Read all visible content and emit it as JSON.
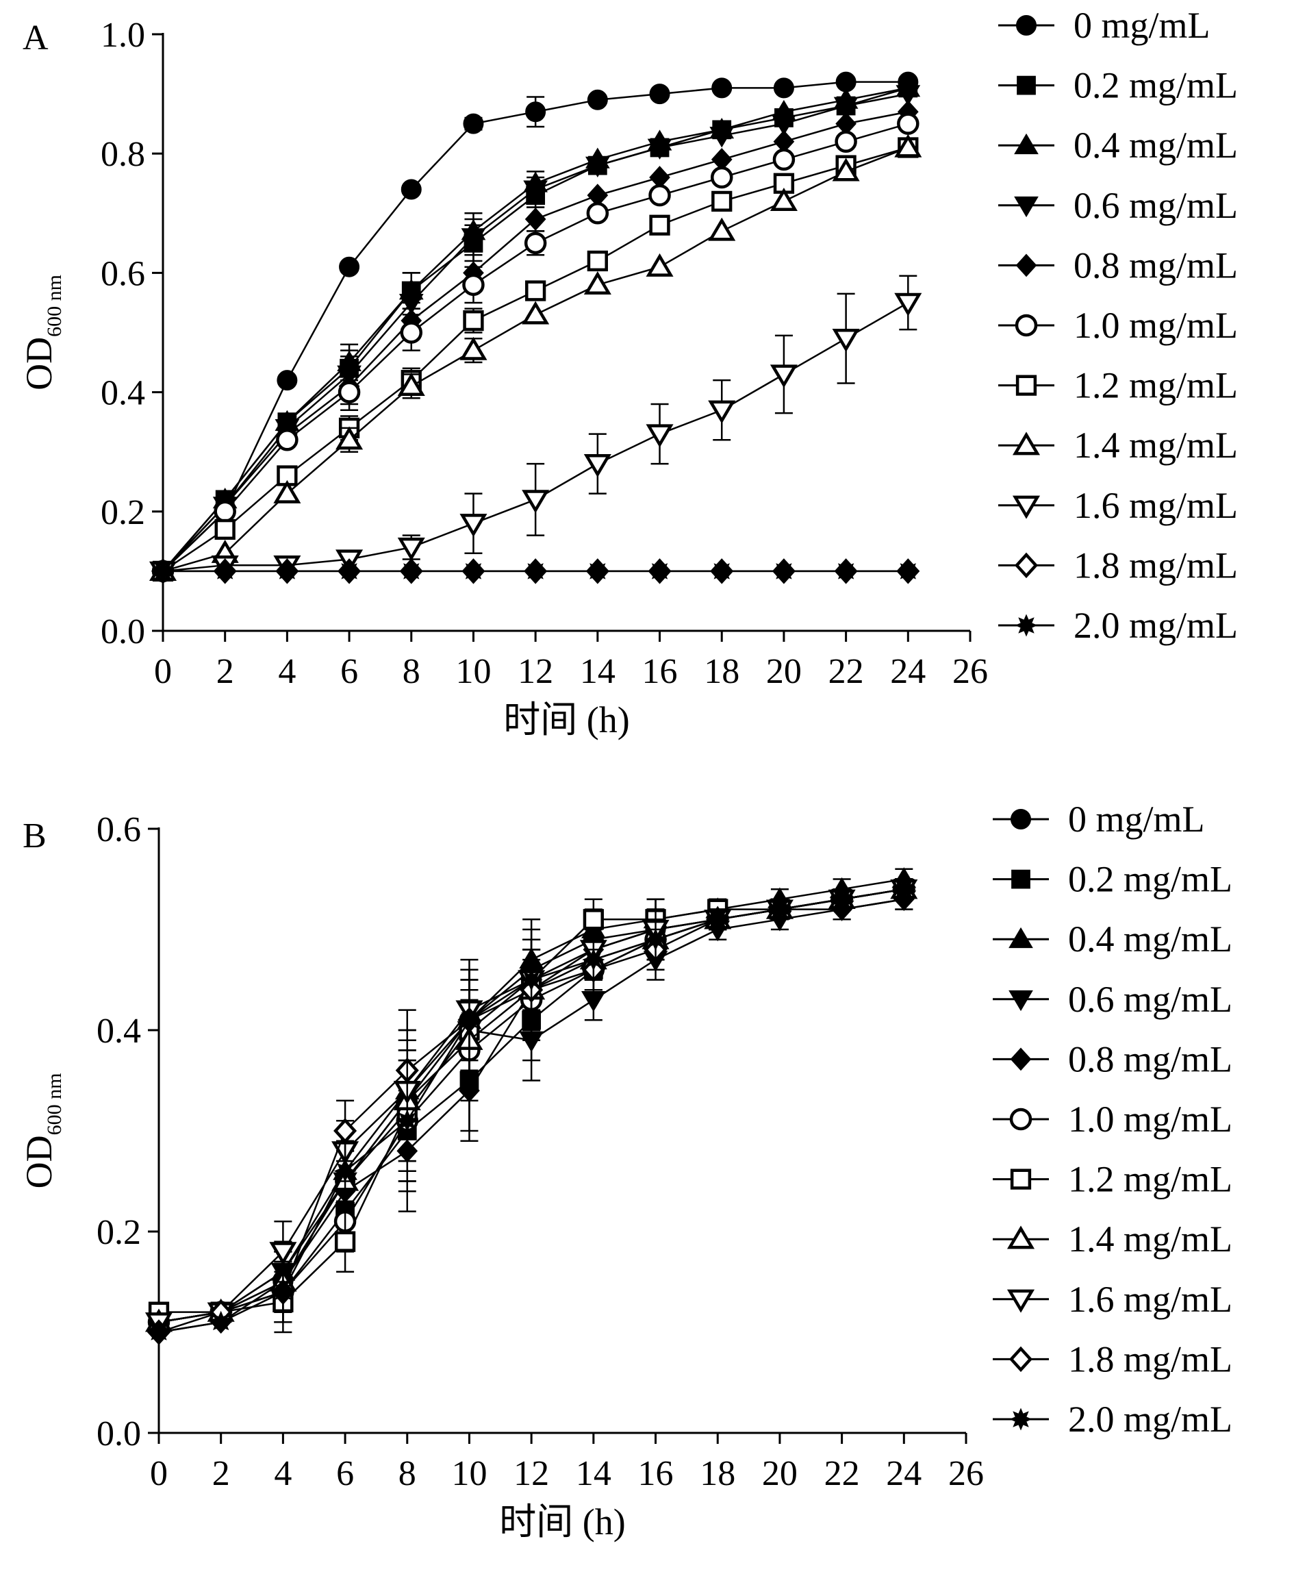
{
  "chart_data": [
    {
      "type": "line",
      "panel_label": "A",
      "xlabel": "时间 (h)",
      "ylabel_main": "OD",
      "ylabel_sub": "600 nm",
      "xlim": [
        0,
        26
      ],
      "ylim": [
        0,
        1.0
      ],
      "xticks": [
        0,
        2,
        4,
        6,
        8,
        10,
        12,
        14,
        16,
        18,
        20,
        22,
        24,
        26
      ],
      "yticks": [
        0.0,
        0.2,
        0.4,
        0.6,
        0.8,
        1.0
      ],
      "ytick_labels": [
        "0.0",
        "0.2",
        "0.4",
        "0.6",
        "0.8",
        "1.0"
      ],
      "grid": false,
      "legend": "right",
      "x": [
        0,
        2,
        4,
        6,
        8,
        10,
        12,
        14,
        16,
        18,
        20,
        22,
        24
      ],
      "series": [
        {
          "name": "0 mg/mL",
          "marker": "circle",
          "filled": true,
          "values": [
            0.1,
            0.2,
            0.42,
            0.61,
            0.74,
            0.85,
            0.87,
            0.89,
            0.9,
            0.91,
            0.91,
            0.92,
            0.92
          ],
          "err": [
            0,
            0,
            0,
            0,
            0,
            0.01,
            0.025,
            0,
            0,
            0,
            0,
            0,
            0
          ]
        },
        {
          "name": "0.2 mg/mL",
          "marker": "square",
          "filled": true,
          "values": [
            0.1,
            0.22,
            0.35,
            0.44,
            0.57,
            0.65,
            0.73,
            0.78,
            0.81,
            0.84,
            0.86,
            0.88,
            0.91
          ],
          "err": [
            0,
            0,
            0,
            0.03,
            0.03,
            0.03,
            0.02,
            0,
            0,
            0,
            0,
            0,
            0
          ]
        },
        {
          "name": "0.4 mg/mL",
          "marker": "triangle-up",
          "filled": true,
          "values": [
            0.1,
            0.22,
            0.35,
            0.45,
            0.57,
            0.67,
            0.75,
            0.79,
            0.82,
            0.84,
            0.87,
            0.89,
            0.91
          ],
          "err": [
            0,
            0,
            0,
            0.03,
            0.03,
            0.03,
            0.02,
            0,
            0,
            0,
            0,
            0,
            0
          ]
        },
        {
          "name": "0.6 mg/mL",
          "marker": "triangle-down",
          "filled": true,
          "values": [
            0.1,
            0.21,
            0.34,
            0.43,
            0.55,
            0.66,
            0.74,
            0.78,
            0.81,
            0.83,
            0.85,
            0.88,
            0.9
          ],
          "err": [
            0,
            0,
            0,
            0.03,
            0.03,
            0.03,
            0.02,
            0,
            0,
            0,
            0,
            0,
            0
          ]
        },
        {
          "name": "0.8 mg/mL",
          "marker": "diamond",
          "filled": true,
          "values": [
            0.1,
            0.21,
            0.33,
            0.41,
            0.52,
            0.6,
            0.69,
            0.73,
            0.76,
            0.79,
            0.82,
            0.85,
            0.87
          ],
          "err": [
            0,
            0,
            0,
            0.03,
            0.03,
            0.03,
            0.02,
            0,
            0,
            0,
            0,
            0,
            0
          ]
        },
        {
          "name": "1.0 mg/mL",
          "marker": "circle",
          "filled": false,
          "values": [
            0.1,
            0.2,
            0.32,
            0.4,
            0.5,
            0.58,
            0.65,
            0.7,
            0.73,
            0.76,
            0.79,
            0.82,
            0.85
          ],
          "err": [
            0,
            0,
            0,
            0.03,
            0.03,
            0.03,
            0.02,
            0,
            0,
            0,
            0,
            0,
            0
          ]
        },
        {
          "name": "1.2 mg/mL",
          "marker": "square",
          "filled": false,
          "values": [
            0.1,
            0.17,
            0.26,
            0.34,
            0.42,
            0.52,
            0.57,
            0.62,
            0.68,
            0.72,
            0.75,
            0.78,
            0.81
          ],
          "err": [
            0,
            0,
            0,
            0.02,
            0.02,
            0.02,
            0,
            0,
            0,
            0,
            0,
            0,
            0
          ]
        },
        {
          "name": "1.4 mg/mL",
          "marker": "triangle-up",
          "filled": false,
          "values": [
            0.1,
            0.13,
            0.23,
            0.32,
            0.41,
            0.47,
            0.53,
            0.58,
            0.61,
            0.67,
            0.72,
            0.77,
            0.81
          ],
          "err": [
            0,
            0,
            0,
            0.02,
            0.02,
            0.02,
            0,
            0,
            0,
            0,
            0,
            0,
            0
          ]
        },
        {
          "name": "1.6 mg/mL",
          "marker": "triangle-down",
          "filled": false,
          "values": [
            0.1,
            0.11,
            0.11,
            0.12,
            0.14,
            0.18,
            0.22,
            0.28,
            0.33,
            0.37,
            0.43,
            0.49,
            0.55
          ],
          "err": [
            0,
            0,
            0,
            0,
            0.02,
            0.05,
            0.06,
            0.05,
            0.05,
            0.05,
            0.065,
            0.075,
            0.045
          ]
        },
        {
          "name": "1.8 mg/mL",
          "marker": "diamond",
          "filled": false,
          "values": [
            0.1,
            0.1,
            0.1,
            0.1,
            0.1,
            0.1,
            0.1,
            0.1,
            0.1,
            0.1,
            0.1,
            0.1,
            0.1
          ],
          "err": [
            0,
            0,
            0,
            0,
            0,
            0,
            0,
            0,
            0,
            0,
            0,
            0,
            0
          ]
        },
        {
          "name": "2.0 mg/mL",
          "marker": "star",
          "filled": true,
          "values": [
            0.1,
            0.1,
            0.1,
            0.1,
            0.1,
            0.1,
            0.1,
            0.1,
            0.1,
            0.1,
            0.1,
            0.1,
            0.1
          ],
          "err": [
            0,
            0,
            0,
            0,
            0,
            0,
            0,
            0,
            0,
            0,
            0,
            0,
            0
          ]
        }
      ]
    },
    {
      "type": "line",
      "panel_label": "B",
      "xlabel": "时间 (h)",
      "ylabel_main": "OD",
      "ylabel_sub": "600 nm",
      "xlim": [
        0,
        26
      ],
      "ylim": [
        0,
        0.6
      ],
      "xticks": [
        0,
        2,
        4,
        6,
        8,
        10,
        12,
        14,
        16,
        18,
        20,
        22,
        24,
        26
      ],
      "yticks": [
        0.0,
        0.2,
        0.4,
        0.6
      ],
      "ytick_labels": [
        "0.0",
        "0.2",
        "0.4",
        "0.6"
      ],
      "grid": false,
      "legend": "right",
      "x": [
        0,
        2,
        4,
        6,
        8,
        10,
        12,
        14,
        16,
        18,
        20,
        22,
        24
      ],
      "series": [
        {
          "name": "0 mg/mL",
          "marker": "circle",
          "filled": true,
          "values": [
            0.11,
            0.12,
            0.15,
            0.25,
            0.33,
            0.41,
            0.46,
            0.49,
            0.5,
            0.51,
            0.52,
            0.53,
            0.54
          ],
          "err": [
            0,
            0,
            0.03,
            0.03,
            0.06,
            0.05,
            0.04,
            0.02,
            0.02,
            0.01,
            0.01,
            0.01,
            0.01
          ]
        },
        {
          "name": "0.2 mg/mL",
          "marker": "square",
          "filled": true,
          "values": [
            0.11,
            0.12,
            0.14,
            0.22,
            0.3,
            0.35,
            0.41,
            0.46,
            0.49,
            0.51,
            0.52,
            0.53,
            0.54
          ],
          "err": [
            0,
            0,
            0.03,
            0.03,
            0.06,
            0.05,
            0.04,
            0.02,
            0.02,
            0.01,
            0.01,
            0.01,
            0.01
          ]
        },
        {
          "name": "0.4 mg/mL",
          "marker": "triangle-up",
          "filled": true,
          "values": [
            0.11,
            0.12,
            0.16,
            0.26,
            0.34,
            0.41,
            0.47,
            0.5,
            0.51,
            0.52,
            0.53,
            0.54,
            0.55
          ],
          "err": [
            0,
            0,
            0.03,
            0.03,
            0.06,
            0.05,
            0.04,
            0.02,
            0.02,
            0.01,
            0.01,
            0.01,
            0.01
          ]
        },
        {
          "name": "0.6 mg/mL",
          "marker": "triangle-down",
          "filled": true,
          "values": [
            0.11,
            0.12,
            0.16,
            0.25,
            0.32,
            0.4,
            0.39,
            0.43,
            0.47,
            0.5,
            0.51,
            0.52,
            0.53
          ],
          "err": [
            0,
            0,
            0.03,
            0.03,
            0.06,
            0.05,
            0.04,
            0.02,
            0.02,
            0.01,
            0.01,
            0.01,
            0.01
          ]
        },
        {
          "name": "0.8 mg/mL",
          "marker": "diamond",
          "filled": true,
          "values": [
            0.1,
            0.11,
            0.15,
            0.24,
            0.28,
            0.34,
            0.44,
            0.48,
            0.5,
            0.51,
            0.52,
            0.52,
            0.53
          ],
          "err": [
            0,
            0,
            0.03,
            0.03,
            0.06,
            0.05,
            0.04,
            0.02,
            0.02,
            0.01,
            0.01,
            0.01,
            0.01
          ]
        },
        {
          "name": "1.0 mg/mL",
          "marker": "circle",
          "filled": false,
          "values": [
            0.11,
            0.12,
            0.14,
            0.21,
            0.31,
            0.38,
            0.43,
            0.46,
            0.49,
            0.51,
            0.52,
            0.53,
            0.54
          ],
          "err": [
            0,
            0,
            0.03,
            0.03,
            0.06,
            0.05,
            0.04,
            0.02,
            0.02,
            0.01,
            0.01,
            0.01,
            0.01
          ]
        },
        {
          "name": "1.2 mg/mL",
          "marker": "square",
          "filled": false,
          "values": [
            0.12,
            0.12,
            0.13,
            0.19,
            0.32,
            0.4,
            0.45,
            0.51,
            0.51,
            0.52,
            0.52,
            0.53,
            0.54
          ],
          "err": [
            0,
            0,
            0.03,
            0.03,
            0.06,
            0.05,
            0.04,
            0.02,
            0.02,
            0.01,
            0.01,
            0.01,
            0.01
          ]
        },
        {
          "name": "1.4 mg/mL",
          "marker": "triangle-up",
          "filled": false,
          "values": [
            0.11,
            0.12,
            0.15,
            0.25,
            0.33,
            0.39,
            0.44,
            0.47,
            0.49,
            0.51,
            0.52,
            0.53,
            0.54
          ],
          "err": [
            0,
            0,
            0.03,
            0.03,
            0.06,
            0.05,
            0.04,
            0.02,
            0.02,
            0.01,
            0.01,
            0.01,
            0.01
          ]
        },
        {
          "name": "1.6 mg/mL",
          "marker": "triangle-down",
          "filled": false,
          "values": [
            0.11,
            0.12,
            0.18,
            0.28,
            0.34,
            0.42,
            0.45,
            0.48,
            0.5,
            0.51,
            0.52,
            0.53,
            0.54
          ],
          "err": [
            0,
            0,
            0.03,
            0.03,
            0.06,
            0.05,
            0.04,
            0.02,
            0.02,
            0.01,
            0.01,
            0.01,
            0.01
          ]
        },
        {
          "name": "1.8 mg/mL",
          "marker": "diamond",
          "filled": false,
          "values": [
            0.1,
            0.12,
            0.14,
            0.3,
            0.36,
            0.41,
            0.44,
            0.46,
            0.48,
            0.51,
            0.52,
            0.53,
            0.54
          ],
          "err": [
            0,
            0,
            0.03,
            0.03,
            0.06,
            0.05,
            0.04,
            0.02,
            0.02,
            0.01,
            0.01,
            0.01,
            0.01
          ]
        },
        {
          "name": "2.0 mg/mL",
          "marker": "star",
          "filled": true,
          "values": [
            0.1,
            0.11,
            0.14,
            0.26,
            0.31,
            0.41,
            0.45,
            0.47,
            0.49,
            0.51,
            0.52,
            0.53,
            0.54
          ],
          "err": [
            0,
            0,
            0.03,
            0.03,
            0.06,
            0.05,
            0.04,
            0.02,
            0.02,
            0.01,
            0.01,
            0.01,
            0.01
          ]
        }
      ]
    }
  ]
}
